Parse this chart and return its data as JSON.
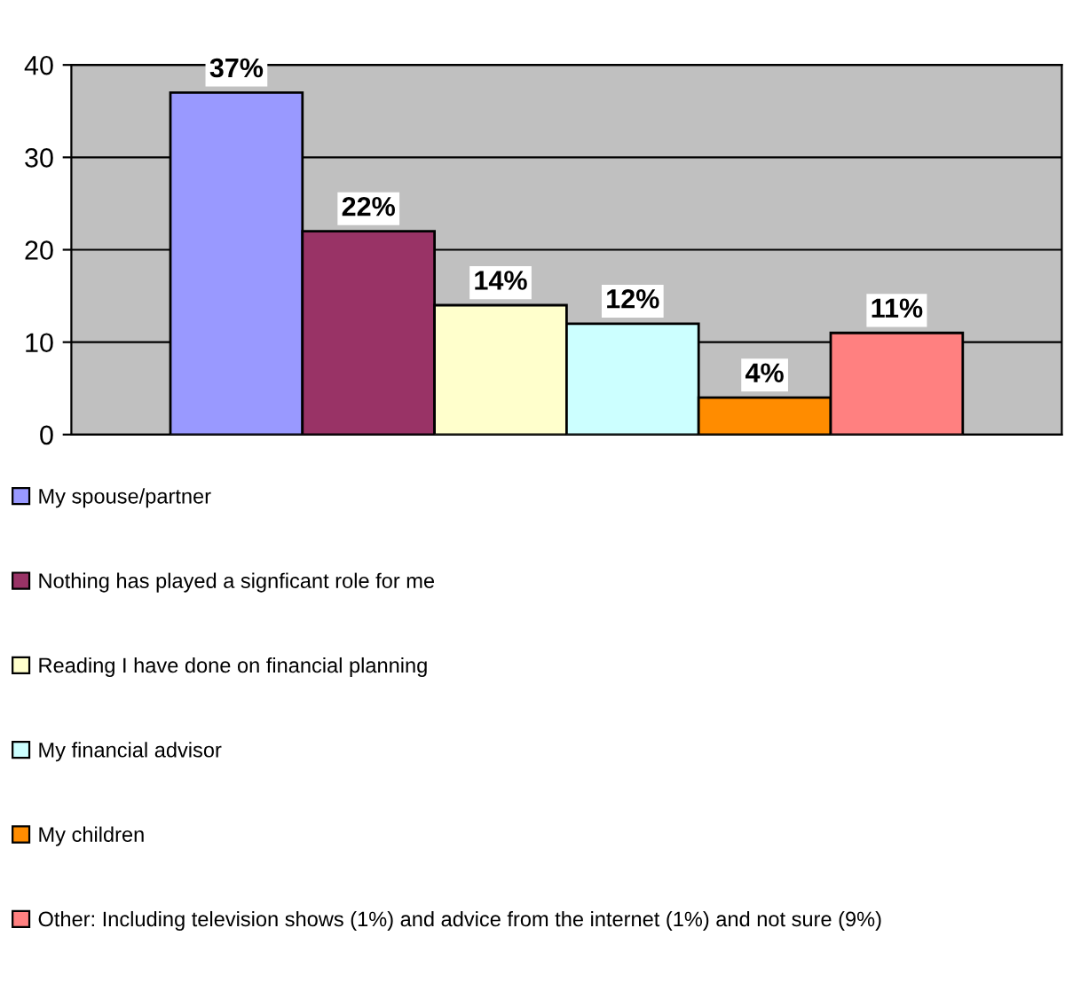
{
  "chart_data": {
    "type": "bar",
    "categories": [
      null
    ],
    "series": [
      {
        "name": "My spouse/partner",
        "color": "#9999ff",
        "values": [
          37
        ],
        "value_labels": [
          "37%"
        ]
      },
      {
        "name": "Nothing has played a signficant role for me",
        "color": "#993366",
        "values": [
          22
        ],
        "value_labels": [
          "22%"
        ]
      },
      {
        "name": "Reading I have done on financial planning",
        "color": "#ffffcc",
        "values": [
          14
        ],
        "value_labels": [
          "14%"
        ]
      },
      {
        "name": "My financial advisor",
        "color": "#ccffff",
        "values": [
          12
        ],
        "value_labels": [
          "12%"
        ]
      },
      {
        "name": "My children",
        "color": "#ff8c00",
        "values": [
          4
        ],
        "value_labels": [
          "4%"
        ]
      },
      {
        "name": "Other: Including television shows (1%) and advice from the internet (1%) and not sure (9%)",
        "color": "#ff8080",
        "values": [
          11
        ],
        "value_labels": [
          "11%"
        ]
      }
    ],
    "ylim": [
      0,
      40
    ],
    "yticks": [
      0,
      10,
      20,
      30,
      40
    ],
    "grid": "y",
    "legend": "bottom"
  }
}
